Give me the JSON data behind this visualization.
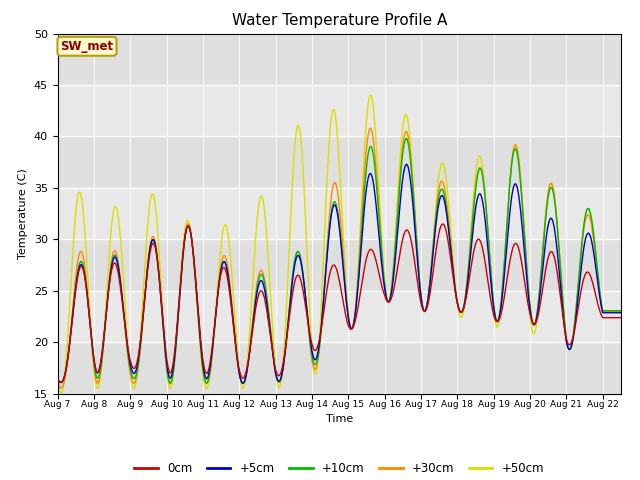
{
  "title": "Water Temperature Profile A",
  "xlabel": "Time",
  "ylabel": "Temperature (C)",
  "ylim": [
    15,
    50
  ],
  "xlim": [
    0,
    15.5
  ],
  "background_color": "#ffffff",
  "plot_bg_color": "#e8e8e8",
  "annotation_text": "SW_met",
  "annotation_fg": "#8b0000",
  "annotation_bg": "#fffacd",
  "annotation_border": "#b8a000",
  "series_colors": {
    "0cm": "#cc0000",
    "+5cm": "#0000cc",
    "+10cm": "#00bb00",
    "+30cm": "#ff8800",
    "+50cm": "#dddd00"
  },
  "x_tick_labels": [
    "Aug 7",
    "Aug 8",
    "Aug 9",
    "Aug 10",
    "Aug 11",
    "Aug 12",
    "Aug 13",
    "Aug 14",
    "Aug 15",
    "Aug 16",
    "Aug 17",
    "Aug 18",
    "Aug 19",
    "Aug 20",
    "Aug 21",
    "Aug 22"
  ],
  "legend_labels": [
    "0cm",
    "+5cm",
    "+10cm",
    "+30cm",
    "+50cm"
  ],
  "figsize": [
    6.4,
    4.8
  ],
  "dpi": 100
}
